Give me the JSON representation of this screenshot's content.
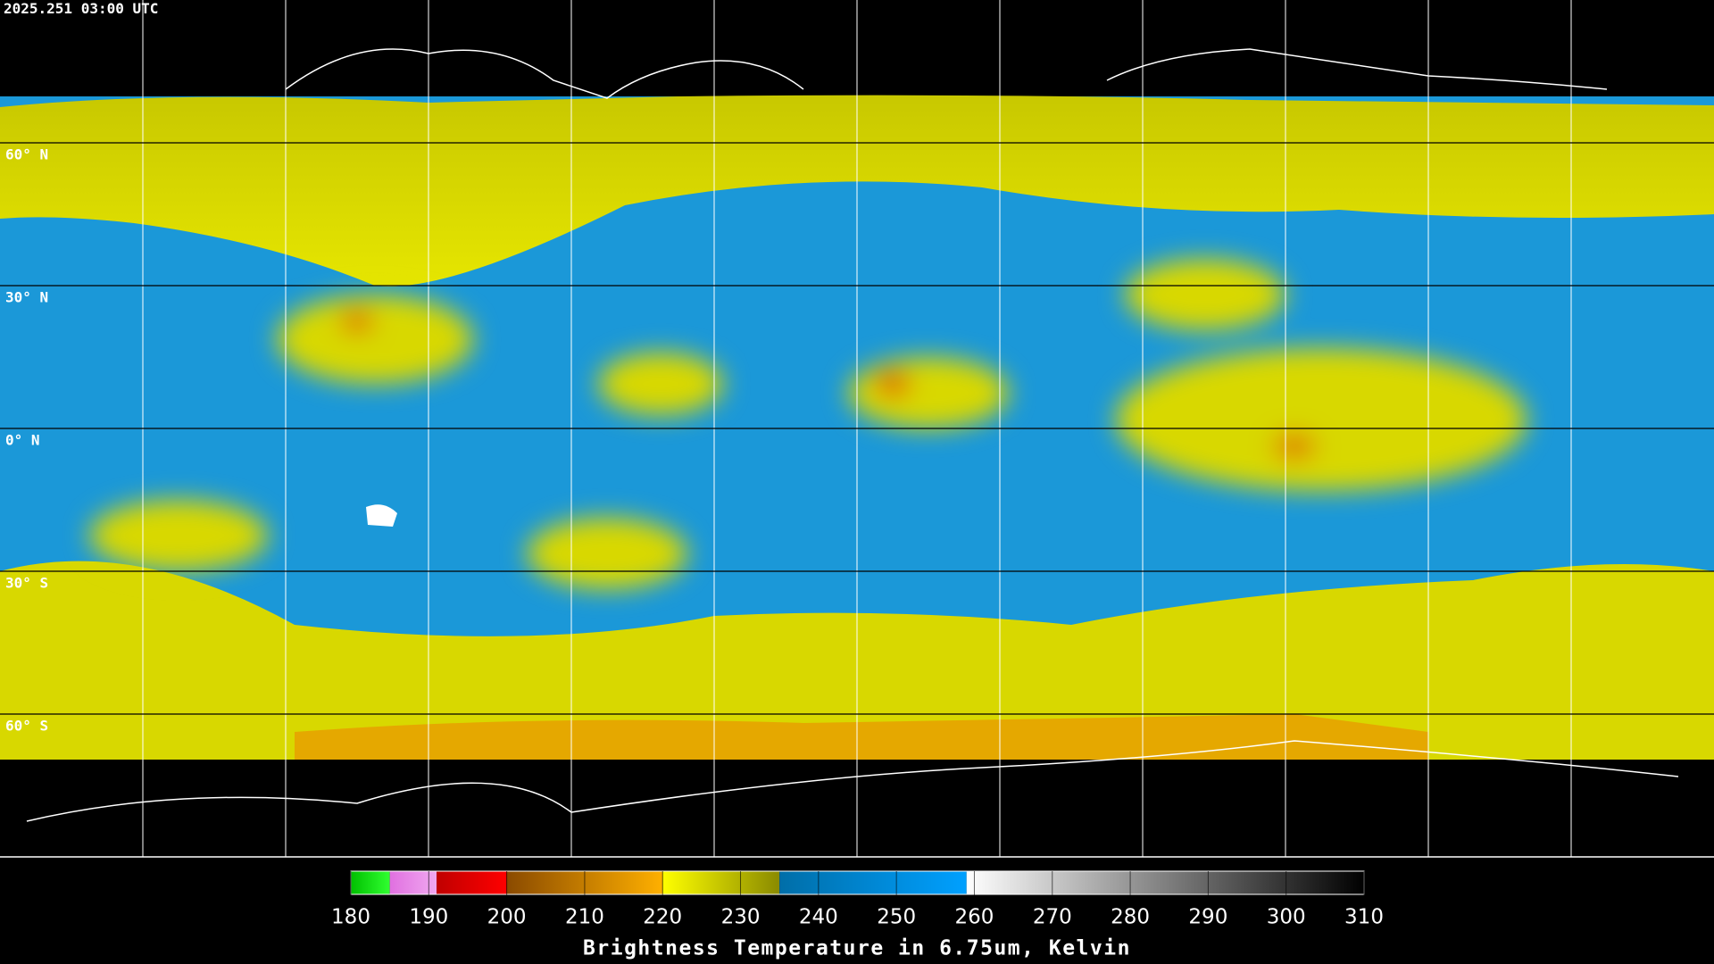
{
  "header": {
    "timestamp": "2025.251 03:00 UTC"
  },
  "map": {
    "lonlim": [
      -180,
      180
    ],
    "latlim": [
      90,
      -90
    ],
    "lon_lines": [
      -150,
      -120,
      -90,
      -60,
      -30,
      0,
      30,
      60,
      90,
      120,
      150
    ],
    "lat_lines": [
      {
        "value": 60,
        "label": "60° N"
      },
      {
        "value": 30,
        "label": "30° N"
      },
      {
        "value": 0,
        "label": "0° N"
      },
      {
        "value": -30,
        "label": "30° S"
      },
      {
        "value": -60,
        "label": "60° S"
      }
    ]
  },
  "colorbar": {
    "title": "Brightness Temperature in 6.75um, Kelvin",
    "range": [
      180,
      310
    ],
    "ticks": [
      180,
      190,
      200,
      210,
      220,
      230,
      240,
      250,
      260,
      270,
      280,
      290,
      300,
      310
    ],
    "segments": [
      {
        "from": 180,
        "to": 185,
        "colors": [
          "#00c000",
          "#30ff30"
        ]
      },
      {
        "from": 185,
        "to": 191,
        "colors": [
          "#e070e0",
          "#f0a8f0"
        ]
      },
      {
        "from": 191,
        "to": 200,
        "colors": [
          "#c00000",
          "#ff0000"
        ]
      },
      {
        "from": 200,
        "to": 220,
        "colors": [
          "#8a4a00",
          "#ffb000"
        ]
      },
      {
        "from": 220,
        "to": 235,
        "colors": [
          "#ffff00",
          "#8a8a00"
        ]
      },
      {
        "from": 235,
        "to": 259,
        "colors": [
          "#006ea8",
          "#00a0ff"
        ]
      },
      {
        "from": 259,
        "to": 310,
        "colors": [
          "#ffffff",
          "#000000"
        ]
      }
    ]
  }
}
